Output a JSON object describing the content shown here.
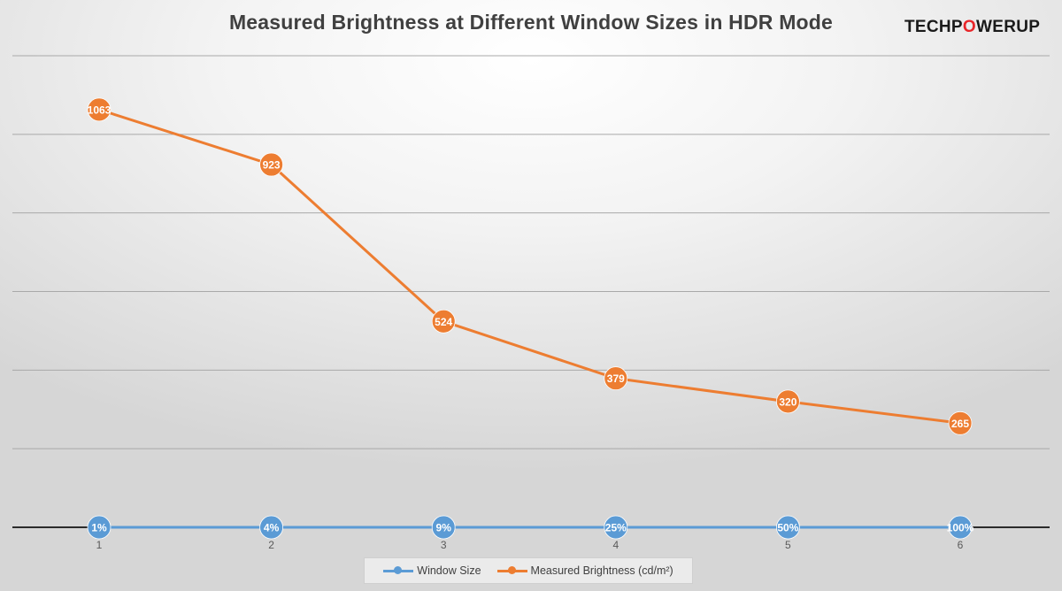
{
  "header": {
    "logo_prefix": "TECHP",
    "logo_power": "O",
    "logo_suffix": "WERUP"
  },
  "chart_data": {
    "type": "line",
    "title": "Measured Brightness at Different Window Sizes in HDR Mode",
    "xlabel": "",
    "ylabel": "",
    "categories": [
      "1",
      "2",
      "3",
      "4",
      "5",
      "6"
    ],
    "ylim": [
      0,
      1200
    ],
    "grid": true,
    "legend_position": "bottom",
    "series": [
      {
        "name": "Window Size",
        "color": "#5b9bd5",
        "values": [
          0,
          0,
          0,
          0,
          0,
          0
        ],
        "labels": [
          "1%",
          "4%",
          "9%",
          "25%",
          "50%",
          "100%"
        ]
      },
      {
        "name": "Measured Brightness (cd/m²)",
        "color": "#ed7d31",
        "values": [
          1063,
          923,
          524,
          379,
          320,
          265
        ],
        "labels": [
          "1063",
          "923",
          "524",
          "379",
          "320",
          "265"
        ]
      }
    ]
  }
}
